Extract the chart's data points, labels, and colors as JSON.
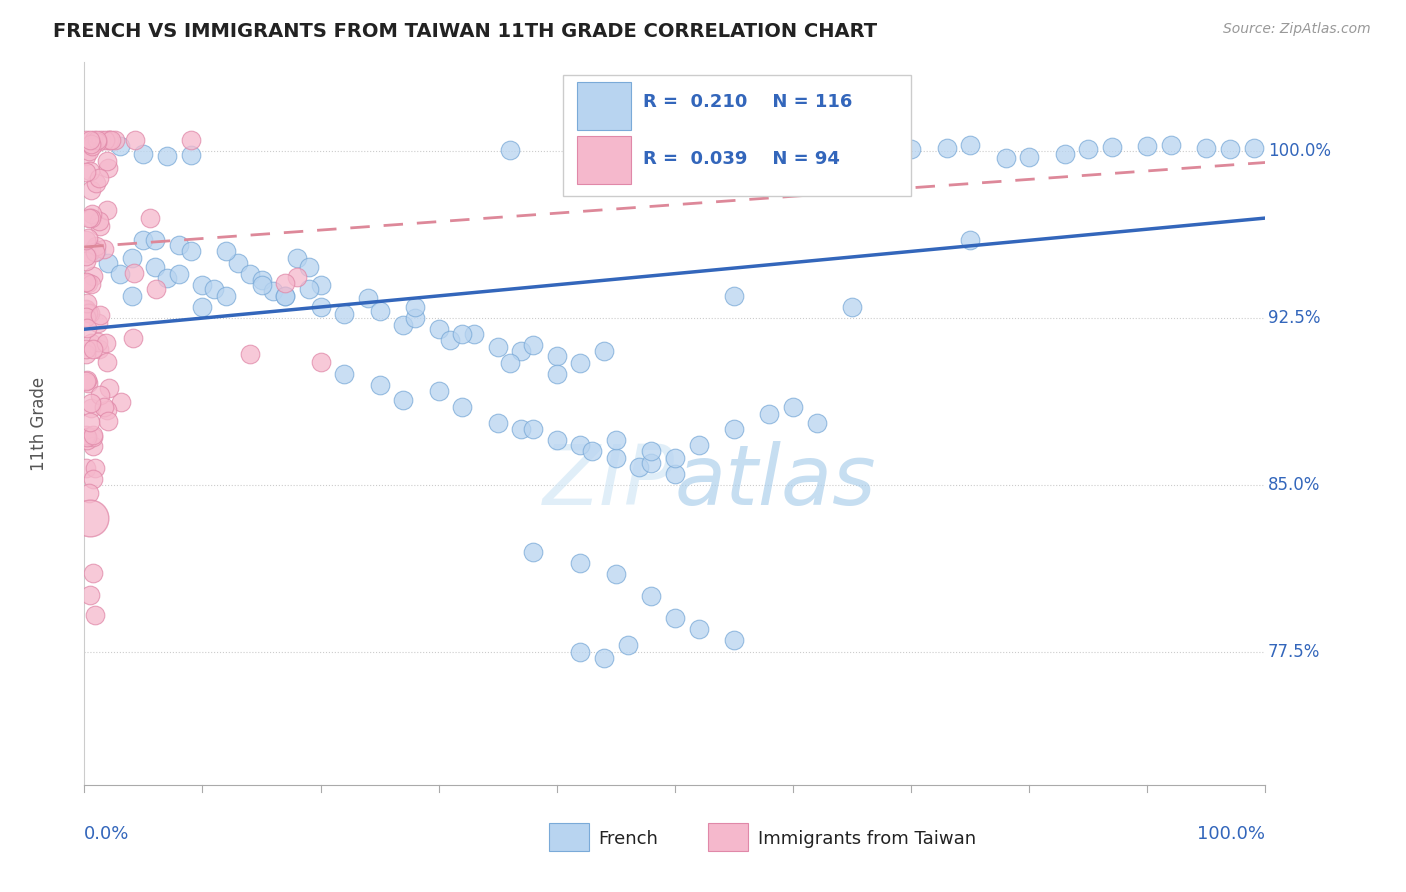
{
  "title": "FRENCH VS IMMIGRANTS FROM TAIWAN 11TH GRADE CORRELATION CHART",
  "source": "Source: ZipAtlas.com",
  "ylabel_label": "11th Grade",
  "watermark": "ZIPatlas",
  "ytick_labels": [
    "77.5%",
    "85.0%",
    "92.5%",
    "100.0%"
  ],
  "ytick_values": [
    0.775,
    0.85,
    0.925,
    1.0
  ],
  "xlim": [
    0.0,
    1.0
  ],
  "ylim": [
    0.715,
    1.04
  ],
  "blue_face_color": "#b8d4f0",
  "blue_edge_color": "#7aaad8",
  "pink_face_color": "#f5b8cc",
  "pink_edge_color": "#e088a8",
  "blue_line_color": "#3366bb",
  "pink_line_color": "#dd8899",
  "title_color": "#222222",
  "axis_label_color": "#3366bb",
  "grid_color": "#cccccc",
  "blue_R": 0.21,
  "blue_N": 116,
  "pink_R": 0.039,
  "pink_N": 94,
  "blue_line_x0": 0.0,
  "blue_line_y0": 0.92,
  "blue_line_x1": 1.0,
  "blue_line_y1": 0.97,
  "pink_line_x0": 0.0,
  "pink_line_y0": 0.96,
  "pink_line_x1": 0.2,
  "pink_line_y1": 0.965
}
